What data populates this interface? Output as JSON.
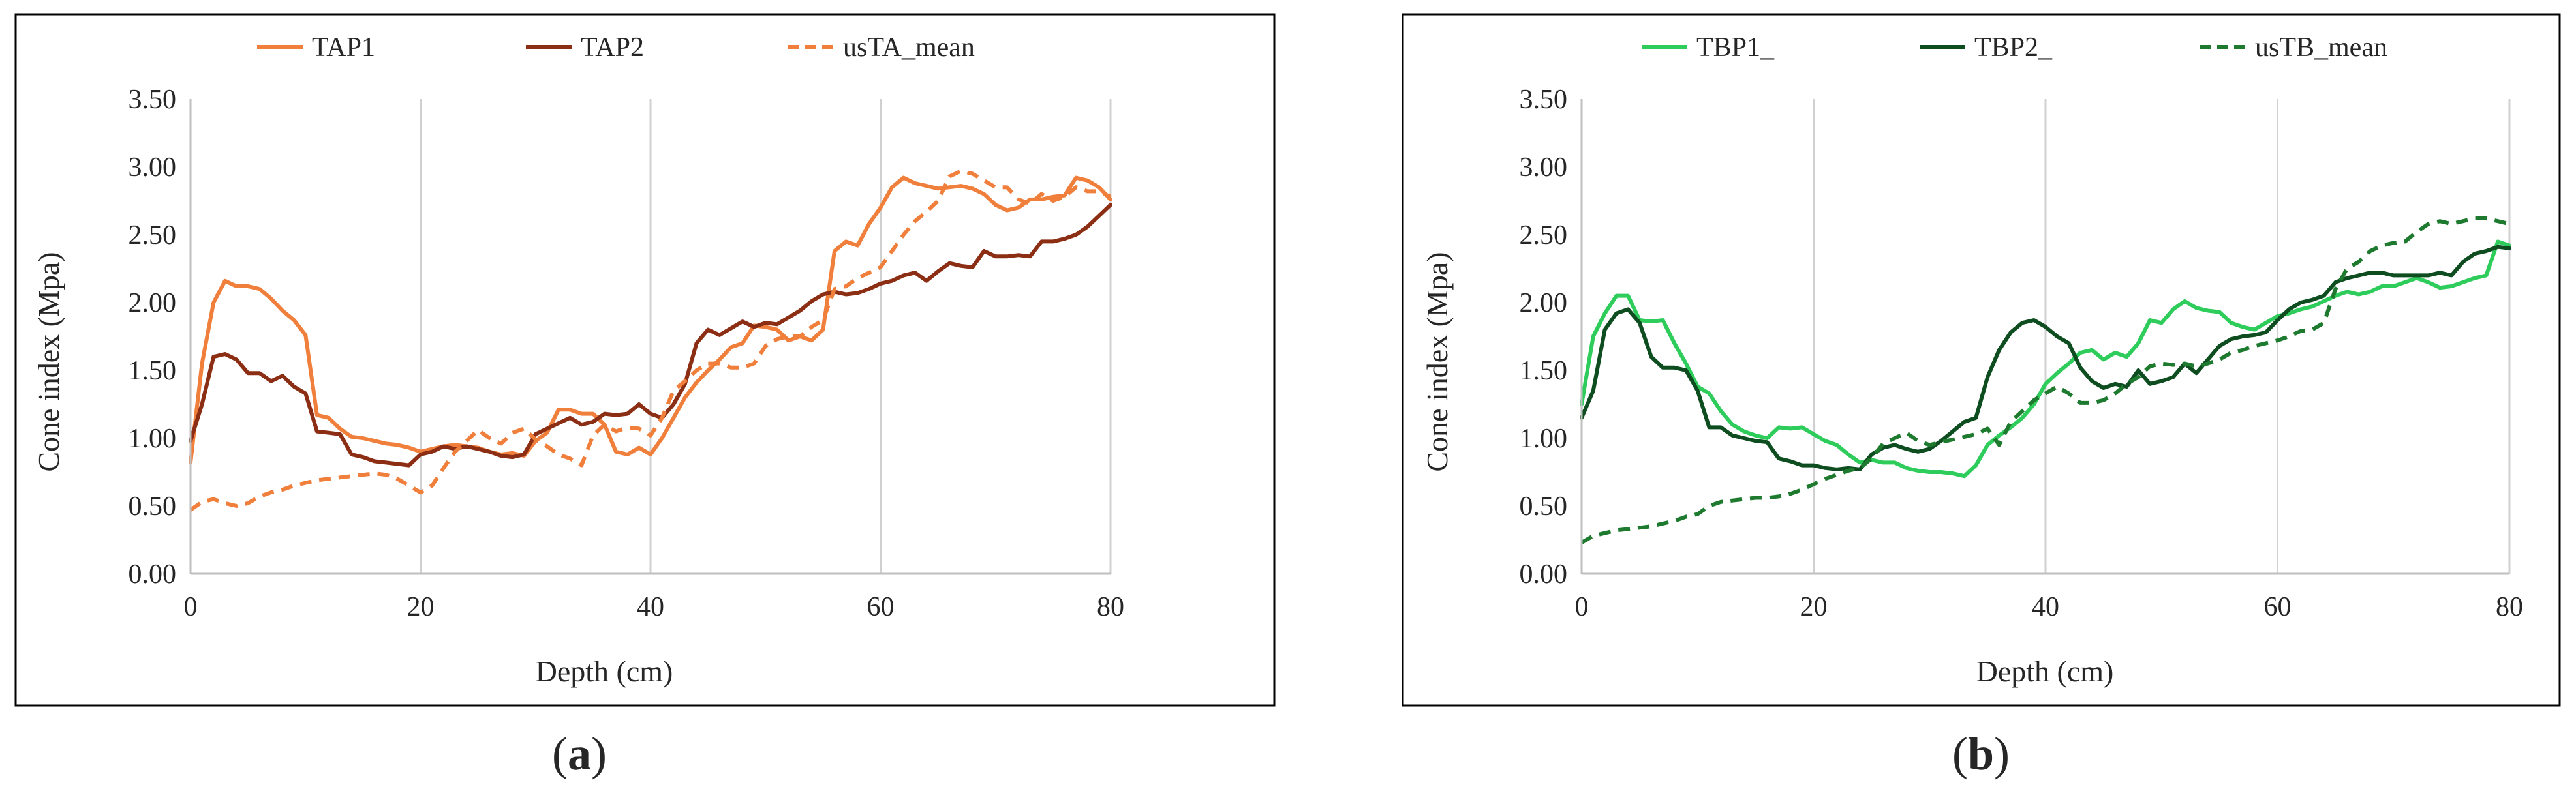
{
  "chart_data": [
    {
      "type": "line",
      "panel_label": "a",
      "xlabel": "Depth (cm)",
      "ylabel": "Cone index (Mpa)",
      "xlim": [
        0,
        80
      ],
      "ylim": [
        0,
        3.5
      ],
      "xticks": [
        0,
        20,
        40,
        60,
        80
      ],
      "xtick_labels": [
        "0",
        "20",
        "40",
        "60",
        "80"
      ],
      "yticks": [
        0,
        0.5,
        1.0,
        1.5,
        2.0,
        2.5,
        3.0,
        3.5
      ],
      "ytick_labels": [
        "0.00",
        "0.50",
        "1.00",
        "1.50",
        "2.00",
        "2.50",
        "3.00",
        "3.50"
      ],
      "grid": "vertical",
      "legend_position": "top",
      "series": [
        {
          "name": "TAP1",
          "color": "#F07F3C",
          "style": "solid",
          "x": [
            0,
            1,
            2,
            3,
            4,
            5,
            6,
            7,
            8,
            9,
            10,
            11,
            12,
            13,
            14,
            15,
            16,
            17,
            18,
            19,
            20,
            21,
            22,
            23,
            24,
            25,
            26,
            27,
            28,
            29,
            30,
            31,
            32,
            33,
            34,
            35,
            36,
            37,
            38,
            39,
            40,
            41,
            42,
            43,
            44,
            45,
            46,
            47,
            48,
            49,
            50,
            51,
            52,
            53,
            54,
            55,
            56,
            57,
            58,
            59,
            60,
            61,
            62,
            63,
            64,
            65,
            66,
            67,
            68,
            69,
            70,
            71,
            72,
            73,
            74,
            75,
            76,
            77,
            78,
            79,
            80
          ],
          "y": [
            0.82,
            1.55,
            2.0,
            2.16,
            2.12,
            2.12,
            2.1,
            2.03,
            1.94,
            1.87,
            1.76,
            1.17,
            1.15,
            1.07,
            1.01,
            1.0,
            0.98,
            0.96,
            0.95,
            0.93,
            0.9,
            0.92,
            0.94,
            0.95,
            0.94,
            0.93,
            0.9,
            0.88,
            0.89,
            0.87,
            0.98,
            1.04,
            1.21,
            1.21,
            1.18,
            1.18,
            1.1,
            0.9,
            0.88,
            0.93,
            0.88,
            1.0,
            1.15,
            1.3,
            1.41,
            1.5,
            1.58,
            1.67,
            1.7,
            1.83,
            1.82,
            1.8,
            1.72,
            1.75,
            1.72,
            1.8,
            2.38,
            2.45,
            2.42,
            2.58,
            2.7,
            2.85,
            2.92,
            2.88,
            2.86,
            2.84,
            2.85,
            2.86,
            2.84,
            2.8,
            2.72,
            2.68,
            2.7,
            2.76,
            2.76,
            2.78,
            2.79,
            2.92,
            2.9,
            2.85,
            2.76
          ]
        },
        {
          "name": "TAP2",
          "color": "#8B2E14",
          "style": "solid",
          "x": [
            0,
            1,
            2,
            3,
            4,
            5,
            6,
            7,
            8,
            9,
            10,
            11,
            12,
            13,
            14,
            15,
            16,
            17,
            18,
            19,
            20,
            21,
            22,
            23,
            24,
            25,
            26,
            27,
            28,
            29,
            30,
            31,
            32,
            33,
            34,
            35,
            36,
            37,
            38,
            39,
            40,
            41,
            42,
            43,
            44,
            45,
            46,
            47,
            48,
            49,
            50,
            51,
            52,
            53,
            54,
            55,
            56,
            57,
            58,
            59,
            60,
            61,
            62,
            63,
            64,
            65,
            66,
            67,
            68,
            69,
            70,
            71,
            72,
            73,
            74,
            75,
            76,
            77,
            78,
            79,
            80
          ],
          "y": [
            0.98,
            1.25,
            1.6,
            1.62,
            1.58,
            1.48,
            1.48,
            1.42,
            1.46,
            1.38,
            1.33,
            1.05,
            1.04,
            1.03,
            0.88,
            0.86,
            0.83,
            0.82,
            0.81,
            0.8,
            0.88,
            0.9,
            0.94,
            0.92,
            0.94,
            0.92,
            0.9,
            0.87,
            0.86,
            0.88,
            1.03,
            1.07,
            1.11,
            1.15,
            1.1,
            1.12,
            1.18,
            1.17,
            1.18,
            1.25,
            1.18,
            1.15,
            1.25,
            1.4,
            1.7,
            1.8,
            1.76,
            1.81,
            1.86,
            1.82,
            1.85,
            1.84,
            1.89,
            1.94,
            2.01,
            2.06,
            2.08,
            2.06,
            2.07,
            2.1,
            2.14,
            2.16,
            2.2,
            2.22,
            2.16,
            2.23,
            2.29,
            2.27,
            2.26,
            2.38,
            2.34,
            2.34,
            2.35,
            2.34,
            2.45,
            2.45,
            2.47,
            2.5,
            2.56,
            2.64,
            2.72
          ]
        },
        {
          "name": "usTA_mean",
          "color": "#F07F3C",
          "style": "dashed",
          "x": [
            0,
            1,
            2,
            3,
            4,
            5,
            6,
            7,
            8,
            9,
            10,
            11,
            12,
            13,
            14,
            15,
            16,
            17,
            18,
            19,
            20,
            21,
            22,
            23,
            24,
            25,
            26,
            27,
            28,
            29,
            30,
            31,
            32,
            33,
            34,
            35,
            36,
            37,
            38,
            39,
            40,
            41,
            42,
            43,
            44,
            45,
            46,
            47,
            48,
            49,
            50,
            51,
            52,
            53,
            54,
            55,
            56,
            57,
            58,
            59,
            60,
            61,
            62,
            63,
            64,
            65,
            66,
            67,
            68,
            69,
            70,
            71,
            72,
            73,
            74,
            75,
            76,
            77,
            78,
            79,
            80
          ],
          "y": [
            0.47,
            0.53,
            0.55,
            0.52,
            0.5,
            0.52,
            0.57,
            0.6,
            0.62,
            0.65,
            0.67,
            0.69,
            0.7,
            0.71,
            0.72,
            0.73,
            0.74,
            0.73,
            0.7,
            0.65,
            0.6,
            0.65,
            0.78,
            0.9,
            0.98,
            1.06,
            1.0,
            0.96,
            1.04,
            1.07,
            0.99,
            0.94,
            0.88,
            0.85,
            0.8,
            1.02,
            1.1,
            1.05,
            1.08,
            1.07,
            1.02,
            1.15,
            1.35,
            1.42,
            1.5,
            1.55,
            1.55,
            1.52,
            1.52,
            1.55,
            1.68,
            1.73,
            1.75,
            1.75,
            1.82,
            1.87,
            2.1,
            2.12,
            2.18,
            2.22,
            2.26,
            2.38,
            2.5,
            2.6,
            2.67,
            2.75,
            2.93,
            2.97,
            2.95,
            2.9,
            2.85,
            2.85,
            2.76,
            2.73,
            2.8,
            2.75,
            2.78,
            2.85,
            2.82,
            2.82,
            2.78
          ]
        }
      ]
    },
    {
      "type": "line",
      "panel_label": "b",
      "xlabel": "Depth (cm)",
      "ylabel": "Cone index (Mpa)",
      "xlim": [
        0,
        80
      ],
      "ylim": [
        0,
        3.5
      ],
      "xticks": [
        0,
        20,
        40,
        60,
        80
      ],
      "xtick_labels": [
        "0",
        "20",
        "40",
        "60",
        "80"
      ],
      "yticks": [
        0,
        0.5,
        1.0,
        1.5,
        2.0,
        2.5,
        3.0,
        3.5
      ],
      "ytick_labels": [
        "0.00",
        "0.50",
        "1.00",
        "1.50",
        "2.00",
        "2.50",
        "3.00",
        "3.50"
      ],
      "grid": "vertical",
      "legend_position": "top",
      "series": [
        {
          "name": "TBP1_",
          "color": "#2ECC5B",
          "style": "solid",
          "x": [
            0,
            1,
            2,
            3,
            4,
            5,
            6,
            7,
            8,
            9,
            10,
            11,
            12,
            13,
            14,
            15,
            16,
            17,
            18,
            19,
            20,
            21,
            22,
            23,
            24,
            25,
            26,
            27,
            28,
            29,
            30,
            31,
            32,
            33,
            34,
            35,
            36,
            37,
            38,
            39,
            40,
            41,
            42,
            43,
            44,
            45,
            46,
            47,
            48,
            49,
            50,
            51,
            52,
            53,
            54,
            55,
            56,
            57,
            58,
            59,
            60,
            61,
            62,
            63,
            64,
            65,
            66,
            67,
            68,
            69,
            70,
            71,
            72,
            73,
            74,
            75,
            76,
            77,
            78,
            79,
            80
          ],
          "y": [
            1.25,
            1.75,
            1.92,
            2.05,
            2.05,
            1.87,
            1.86,
            1.87,
            1.7,
            1.55,
            1.38,
            1.33,
            1.2,
            1.1,
            1.05,
            1.02,
            1.0,
            1.08,
            1.07,
            1.08,
            1.03,
            0.98,
            0.95,
            0.88,
            0.82,
            0.84,
            0.82,
            0.82,
            0.78,
            0.76,
            0.75,
            0.75,
            0.74,
            0.72,
            0.8,
            0.95,
            1.02,
            1.08,
            1.15,
            1.25,
            1.4,
            1.48,
            1.55,
            1.63,
            1.65,
            1.58,
            1.63,
            1.6,
            1.7,
            1.87,
            1.85,
            1.95,
            2.01,
            1.96,
            1.94,
            1.93,
            1.85,
            1.82,
            1.8,
            1.85,
            1.9,
            1.92,
            1.95,
            1.97,
            2.01,
            2.05,
            2.08,
            2.06,
            2.08,
            2.12,
            2.12,
            2.15,
            2.18,
            2.15,
            2.11,
            2.12,
            2.15,
            2.18,
            2.2,
            2.45,
            2.42
          ]
        },
        {
          "name": "TBP2_",
          "color": "#0D4D1F",
          "style": "solid",
          "x": [
            0,
            1,
            2,
            3,
            4,
            5,
            6,
            7,
            8,
            9,
            10,
            11,
            12,
            13,
            14,
            15,
            16,
            17,
            18,
            19,
            20,
            21,
            22,
            23,
            24,
            25,
            26,
            27,
            28,
            29,
            30,
            31,
            32,
            33,
            34,
            35,
            36,
            37,
            38,
            39,
            40,
            41,
            42,
            43,
            44,
            45,
            46,
            47,
            48,
            49,
            50,
            51,
            52,
            53,
            54,
            55,
            56,
            57,
            58,
            59,
            60,
            61,
            62,
            63,
            64,
            65,
            66,
            67,
            68,
            69,
            70,
            71,
            72,
            73,
            74,
            75,
            76,
            77,
            78,
            79,
            80
          ],
          "y": [
            1.15,
            1.35,
            1.8,
            1.92,
            1.95,
            1.85,
            1.6,
            1.52,
            1.52,
            1.5,
            1.35,
            1.08,
            1.08,
            1.02,
            1.0,
            0.98,
            0.97,
            0.85,
            0.83,
            0.8,
            0.8,
            0.78,
            0.77,
            0.78,
            0.77,
            0.88,
            0.93,
            0.95,
            0.92,
            0.9,
            0.92,
            0.98,
            1.05,
            1.12,
            1.15,
            1.45,
            1.65,
            1.78,
            1.85,
            1.87,
            1.82,
            1.75,
            1.7,
            1.52,
            1.42,
            1.37,
            1.4,
            1.38,
            1.5,
            1.4,
            1.42,
            1.45,
            1.55,
            1.48,
            1.58,
            1.68,
            1.73,
            1.75,
            1.76,
            1.78,
            1.87,
            1.95,
            2.0,
            2.02,
            2.05,
            2.15,
            2.18,
            2.2,
            2.22,
            2.22,
            2.2,
            2.2,
            2.2,
            2.2,
            2.22,
            2.2,
            2.3,
            2.36,
            2.38,
            2.41,
            2.4
          ]
        },
        {
          "name": "usTB_mean",
          "color": "#1E7A2E",
          "style": "dashed",
          "x": [
            0,
            1,
            2,
            3,
            4,
            5,
            6,
            7,
            8,
            9,
            10,
            11,
            12,
            13,
            14,
            15,
            16,
            17,
            18,
            19,
            20,
            21,
            22,
            23,
            24,
            25,
            26,
            27,
            28,
            29,
            30,
            31,
            32,
            33,
            34,
            35,
            36,
            37,
            38,
            39,
            40,
            41,
            42,
            43,
            44,
            45,
            46,
            47,
            48,
            49,
            50,
            51,
            52,
            53,
            54,
            55,
            56,
            57,
            58,
            59,
            60,
            61,
            62,
            63,
            64,
            65,
            66,
            67,
            68,
            69,
            70,
            71,
            72,
            73,
            74,
            75,
            76,
            77,
            78,
            79,
            80
          ],
          "y": [
            0.23,
            0.28,
            0.3,
            0.32,
            0.33,
            0.34,
            0.35,
            0.37,
            0.39,
            0.42,
            0.44,
            0.5,
            0.53,
            0.54,
            0.55,
            0.56,
            0.56,
            0.57,
            0.59,
            0.62,
            0.66,
            0.7,
            0.73,
            0.76,
            0.78,
            0.85,
            0.96,
            1.0,
            1.04,
            0.98,
            0.95,
            0.97,
            0.99,
            1.01,
            1.03,
            1.07,
            0.95,
            1.12,
            1.2,
            1.28,
            1.33,
            1.38,
            1.33,
            1.26,
            1.26,
            1.28,
            1.33,
            1.4,
            1.45,
            1.53,
            1.55,
            1.54,
            1.55,
            1.53,
            1.55,
            1.58,
            1.63,
            1.65,
            1.68,
            1.7,
            1.72,
            1.75,
            1.79,
            1.8,
            1.85,
            2.1,
            2.25,
            2.3,
            2.38,
            2.42,
            2.44,
            2.45,
            2.52,
            2.58,
            2.6,
            2.58,
            2.6,
            2.62,
            2.62,
            2.6,
            2.58
          ]
        }
      ]
    }
  ]
}
